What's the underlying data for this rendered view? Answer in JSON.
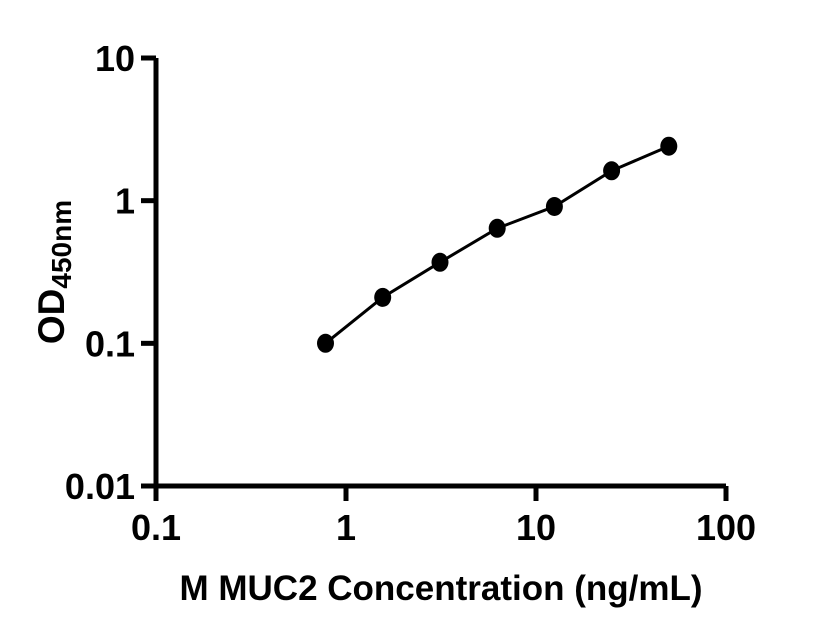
{
  "figure": {
    "background": "#ffffff",
    "foreground": "#000000"
  },
  "chart_data": {
    "type": "scatter",
    "subtype": "line-with-filled-circle-markers",
    "title": "",
    "xlabel": "M MUC2 Concentration (ng/mL)",
    "ylabel_main": "OD",
    "ylabel_sub": "450nm",
    "x_scale": "log10",
    "y_scale": "log10",
    "xlim": [
      0.1,
      100
    ],
    "ylim": [
      0.01,
      10
    ],
    "grid": false,
    "legend": false,
    "x_ticks": [
      {
        "value": 0.1,
        "label": "0.1"
      },
      {
        "value": 1,
        "label": "1"
      },
      {
        "value": 10,
        "label": "10"
      },
      {
        "value": 100,
        "label": "100"
      }
    ],
    "y_ticks": [
      {
        "value": 0.01,
        "label": "0.01"
      },
      {
        "value": 0.1,
        "label": "0.1"
      },
      {
        "value": 1,
        "label": "1"
      },
      {
        "value": 10,
        "label": "10"
      }
    ],
    "series": [
      {
        "marker": "filled-circle",
        "color": "#000000",
        "line_color": "#000000",
        "x": [
          0.78,
          1.56,
          3.125,
          6.25,
          12.5,
          25,
          50
        ],
        "y": [
          0.1,
          0.21,
          0.37,
          0.64,
          0.91,
          1.62,
          2.41
        ]
      }
    ]
  }
}
